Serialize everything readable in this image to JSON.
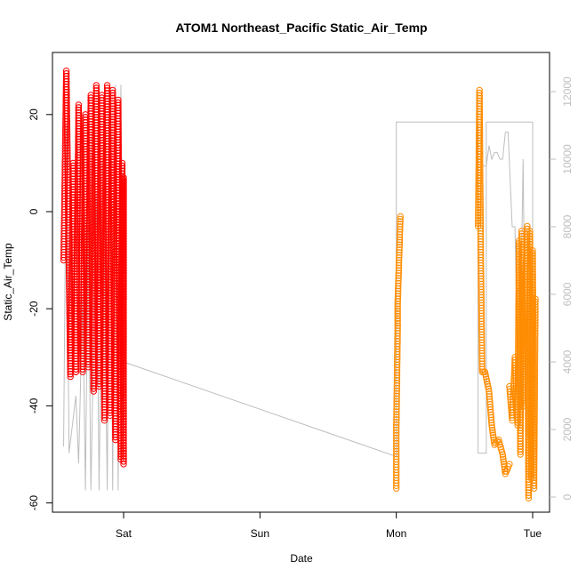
{
  "chart_data": {
    "type": "scatter",
    "title": "ATOM1 Northeast_Pacific Static_Air_Temp",
    "xlabel": "Date",
    "ylabel": "Static_Air_Temp",
    "x_ticks": [
      "Sat",
      "Sun",
      "Mon",
      "Tue"
    ],
    "y_ticks": [
      -60,
      -40,
      -20,
      0,
      20
    ],
    "y_right_ticks": [
      0,
      2000,
      4000,
      6000,
      8000,
      10000,
      12000
    ],
    "xlim_days": [
      -0.45,
      3.1
    ],
    "ylim": [
      -62,
      30
    ],
    "y_right_lim": [
      -300,
      12600
    ],
    "grid": false,
    "colors": {
      "series1": "#ff0000",
      "series2": "#ff8c00",
      "altitude": "#bebebe"
    },
    "series": [
      {
        "color": "#ff0000",
        "marker": "open-circle",
        "segments": [
          [
            [
              -0.44,
              -10
            ],
            [
              -0.42,
              29
            ],
            [
              -0.39,
              -34
            ],
            [
              -0.37,
              10
            ],
            [
              -0.35,
              -33
            ]
          ],
          [
            [
              -0.35,
              -33
            ],
            [
              -0.33,
              22
            ],
            [
              -0.3,
              -33
            ],
            [
              -0.28,
              20
            ],
            [
              -0.26,
              -32
            ],
            [
              -0.24,
              24
            ],
            [
              -0.22,
              -37
            ],
            [
              -0.2,
              26
            ],
            [
              -0.18,
              -36
            ],
            [
              -0.16,
              24
            ],
            [
              -0.14,
              -43
            ],
            [
              -0.12,
              26
            ],
            [
              -0.1,
              -42
            ],
            [
              -0.08,
              25
            ],
            [
              -0.06,
              -47
            ],
            [
              -0.04,
              23
            ],
            [
              -0.02,
              -51
            ],
            [
              -0.01,
              10
            ],
            [
              0.0,
              -52
            ],
            [
              0.0,
              7
            ],
            [
              0.0,
              -10
            ],
            [
              0.0,
              -18
            ]
          ]
        ]
      },
      {
        "color": "#ff8c00",
        "marker": "open-circle",
        "segments": [
          [
            [
              2.0,
              -57
            ],
            [
              2.0,
              -45
            ],
            [
              2.01,
              -24
            ],
            [
              2.01,
              -19
            ],
            [
              2.02,
              -10
            ],
            [
              2.03,
              -1
            ]
          ],
          [
            [
              2.6,
              -3
            ],
            [
              2.61,
              25
            ],
            [
              2.62,
              -10
            ],
            [
              2.63,
              -33
            ],
            [
              2.65,
              -33
            ],
            [
              2.68,
              -37
            ],
            [
              2.7,
              -44
            ],
            [
              2.72,
              -48
            ],
            [
              2.75,
              -47
            ],
            [
              2.78,
              -50
            ],
            [
              2.8,
              -54
            ],
            [
              2.83,
              -52
            ]
          ],
          [
            [
              2.83,
              -36
            ],
            [
              2.85,
              -43
            ],
            [
              2.87,
              -30
            ],
            [
              2.89,
              -44
            ],
            [
              2.9,
              -6
            ],
            [
              2.91,
              -50
            ],
            [
              2.92,
              -4
            ],
            [
              2.93,
              -40
            ],
            [
              2.94,
              -20
            ],
            [
              2.96,
              -3
            ],
            [
              2.97,
              -59
            ],
            [
              2.98,
              -4
            ],
            [
              2.99,
              -55
            ],
            [
              3.0,
              -8
            ],
            [
              3.01,
              -57
            ],
            [
              3.02,
              -18
            ]
          ]
        ]
      }
    ],
    "altitude_line": {
      "color": "#bebebe",
      "axis": "right",
      "points": [
        [
          -0.44,
          1500
        ],
        [
          -0.42,
          11000
        ],
        [
          -0.4,
          1300
        ],
        [
          -0.35,
          3000
        ],
        [
          -0.33,
          1000
        ],
        [
          -0.3,
          6000
        ],
        [
          -0.28,
          200
        ],
        [
          -0.26,
          8000
        ],
        [
          -0.24,
          200
        ],
        [
          -0.2,
          9000
        ],
        [
          -0.18,
          200
        ],
        [
          -0.15,
          10000
        ],
        [
          -0.12,
          200
        ],
        [
          -0.1,
          11000
        ],
        [
          -0.08,
          200
        ],
        [
          -0.06,
          12200
        ],
        [
          -0.04,
          200
        ],
        [
          -0.02,
          12200
        ],
        [
          0.0,
          4000
        ],
        [
          2.0,
          1200
        ],
        [
          2.0,
          11100
        ],
        [
          2.6,
          11100
        ],
        [
          2.6,
          1300
        ],
        [
          2.66,
          1300
        ],
        [
          2.66,
          11100
        ],
        [
          3.0,
          11100
        ],
        [
          3.0,
          200
        ],
        [
          2.95,
          2500
        ],
        [
          2.93,
          10000
        ],
        [
          2.9,
          2000
        ],
        [
          2.87,
          8000
        ],
        [
          2.85,
          8000
        ],
        [
          2.82,
          10800
        ],
        [
          2.8,
          10800
        ],
        [
          2.78,
          10000
        ],
        [
          2.76,
          10000
        ],
        [
          2.74,
          10200
        ],
        [
          2.72,
          10200
        ],
        [
          2.7,
          10000
        ],
        [
          2.68,
          10400
        ],
        [
          2.66,
          9800
        ],
        [
          2.64,
          9800
        ]
      ]
    }
  }
}
